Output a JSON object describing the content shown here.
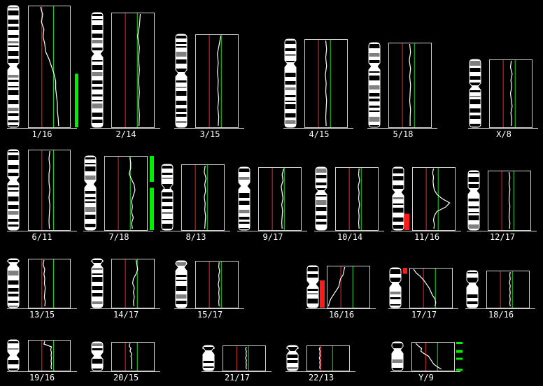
{
  "colors": {
    "background": "#000000",
    "profile": "#ffffff",
    "ratio_loss_line": "#ff2020",
    "ratio_gain_line": "#20e020",
    "gain_bar": "#00ee00",
    "loss_bar": "#ff1a1a",
    "band_dark": "#000000",
    "band_light": "#ffffff",
    "band_gray": "#808080"
  },
  "chromosomes": [
    {
      "label": "1/16",
      "profile": [
        0.3,
        0.35,
        0.32,
        0.38,
        0.36,
        0.4,
        0.42,
        0.5,
        0.56,
        0.62,
        0.66,
        0.66,
        0.68,
        0.7,
        0.7,
        0.72,
        0.73
      ],
      "bars": [
        {
          "type": "gain",
          "from": 0.56,
          "to": 1.0
        }
      ]
    },
    {
      "label": "2/14",
      "profile": [
        0.68,
        0.66,
        0.62,
        0.66,
        0.64,
        0.66,
        0.64,
        0.66,
        0.64,
        0.66,
        0.65
      ]
    },
    {
      "label": "3/15",
      "profile": [
        0.6,
        0.56,
        0.52,
        0.54,
        0.52,
        0.54,
        0.53,
        0.55,
        0.53,
        0.55,
        0.54
      ]
    },
    {
      "label": "4/15",
      "profile": [
        0.5,
        0.52,
        0.5,
        0.52,
        0.49,
        0.51,
        0.5,
        0.52,
        0.51,
        0.5,
        0.51
      ]
    },
    {
      "label": "5/18",
      "profile": [
        0.5,
        0.52,
        0.49,
        0.52,
        0.5,
        0.52,
        0.51,
        0.5,
        0.52,
        0.51,
        0.51
      ]
    },
    {
      "label": "X/8",
      "profile": [
        0.52,
        0.5,
        0.54,
        0.51,
        0.53,
        0.5,
        0.52,
        0.54,
        0.51,
        0.53,
        0.52
      ]
    },
    {
      "label": "6/11",
      "profile": [
        0.52,
        0.5,
        0.52,
        0.5,
        0.5,
        0.52,
        0.5,
        0.52,
        0.51,
        0.5,
        0.51
      ]
    },
    {
      "label": "7/18",
      "profile": [
        0.6,
        0.62,
        0.62,
        0.58,
        0.64,
        0.7,
        0.72,
        0.68,
        0.64,
        0.66,
        0.64,
        0.68,
        0.64,
        0.66
      ],
      "bars": [
        {
          "type": "gain",
          "from": 0.0,
          "to": 0.35
        },
        {
          "type": "gain",
          "from": 0.43,
          "to": 1.0
        }
      ]
    },
    {
      "label": "8/13",
      "profile": [
        0.56,
        0.54,
        0.58,
        0.55,
        0.57,
        0.54,
        0.56,
        0.55,
        0.57,
        0.56,
        0.55
      ]
    },
    {
      "label": "9/17",
      "profile": [
        0.6,
        0.56,
        0.58,
        0.54,
        0.56,
        0.58,
        0.55,
        0.57,
        0.56,
        0.55,
        0.56
      ]
    },
    {
      "label": "10/14",
      "profile": [
        0.56,
        0.55,
        0.57,
        0.54,
        0.56,
        0.55,
        0.57,
        0.55,
        0.56,
        0.55,
        0.56
      ]
    },
    {
      "label": "11/16",
      "profile": [
        0.5,
        0.48,
        0.5,
        0.49,
        0.5,
        0.52,
        0.58,
        0.7,
        0.88,
        0.78,
        0.58,
        0.52,
        0.5,
        0.52,
        0.51
      ],
      "bars": [
        {
          "type": "loss",
          "from": 0.74,
          "to": 1.0
        }
      ]
    },
    {
      "label": "12/17",
      "profile": [
        0.5,
        0.52,
        0.5,
        0.52,
        0.51,
        0.5,
        0.52,
        0.51,
        0.5,
        0.52,
        0.51
      ]
    },
    {
      "label": "13/15",
      "profile": [
        0.38,
        0.36,
        0.4,
        0.38,
        0.4,
        0.39,
        0.41,
        0.4,
        0.39,
        0.41,
        0.4
      ]
    },
    {
      "label": "14/17",
      "profile": [
        0.58,
        0.6,
        0.62,
        0.58,
        0.52,
        0.5,
        0.54,
        0.52,
        0.54,
        0.52,
        0.53
      ]
    },
    {
      "label": "15/17",
      "profile": [
        0.56,
        0.55,
        0.57,
        0.55,
        0.56,
        0.54,
        0.56,
        0.55,
        0.56,
        0.55,
        0.56
      ]
    },
    {
      "label": "16/16",
      "profile": [
        0.42,
        0.4,
        0.38,
        0.32,
        0.3,
        0.28,
        0.22,
        0.16,
        0.1,
        0.06,
        0.04
      ],
      "bars": [
        {
          "type": "loss",
          "from": 0.35,
          "to": 1.0
        }
      ]
    },
    {
      "label": "17/17",
      "profile": [
        0.1,
        0.16,
        0.26,
        0.34,
        0.4,
        0.46,
        0.5,
        0.54,
        0.6,
        0.62,
        0.6
      ],
      "bars": [
        {
          "type": "loss",
          "from": 0.0,
          "to": 0.15
        }
      ]
    },
    {
      "label": "18/16",
      "profile": [
        0.56,
        0.55,
        0.56,
        0.54,
        0.56,
        0.55,
        0.56,
        0.55,
        0.56,
        0.55,
        0.56
      ]
    },
    {
      "label": "19/16",
      "profile": [
        0.4,
        0.38,
        0.56,
        0.54,
        0.56,
        0.55,
        0.56,
        0.55,
        0.56,
        0.55,
        0.56
      ]
    },
    {
      "label": "20/15",
      "profile": [
        0.44,
        0.42,
        0.46,
        0.44,
        0.48,
        0.46,
        0.48,
        0.47,
        0.48,
        0.47,
        0.48
      ]
    },
    {
      "label": "21/17",
      "profile": [
        0.56,
        0.54,
        0.56,
        0.55,
        0.56,
        0.54,
        0.56,
        0.55,
        0.56,
        0.55,
        0.56
      ]
    },
    {
      "label": "22/13",
      "profile": [
        0.32,
        0.3,
        0.32,
        0.31,
        0.32,
        0.3,
        0.32,
        0.31,
        0.32,
        0.31,
        0.32
      ]
    },
    {
      "label": "Y/9",
      "profile": [
        0.1,
        0.16,
        0.24,
        0.22,
        0.3,
        0.4,
        0.44,
        0.48,
        0.52,
        0.6,
        0.7
      ],
      "bars": [
        {
          "type": "gain",
          "from": 0.0,
          "to": 0.06
        },
        {
          "type": "gain",
          "from": 0.28,
          "to": 0.38
        },
        {
          "type": "gain",
          "from": 0.55,
          "to": 0.62
        },
        {
          "type": "gain",
          "from": 0.94,
          "to": 1.0
        }
      ]
    }
  ]
}
